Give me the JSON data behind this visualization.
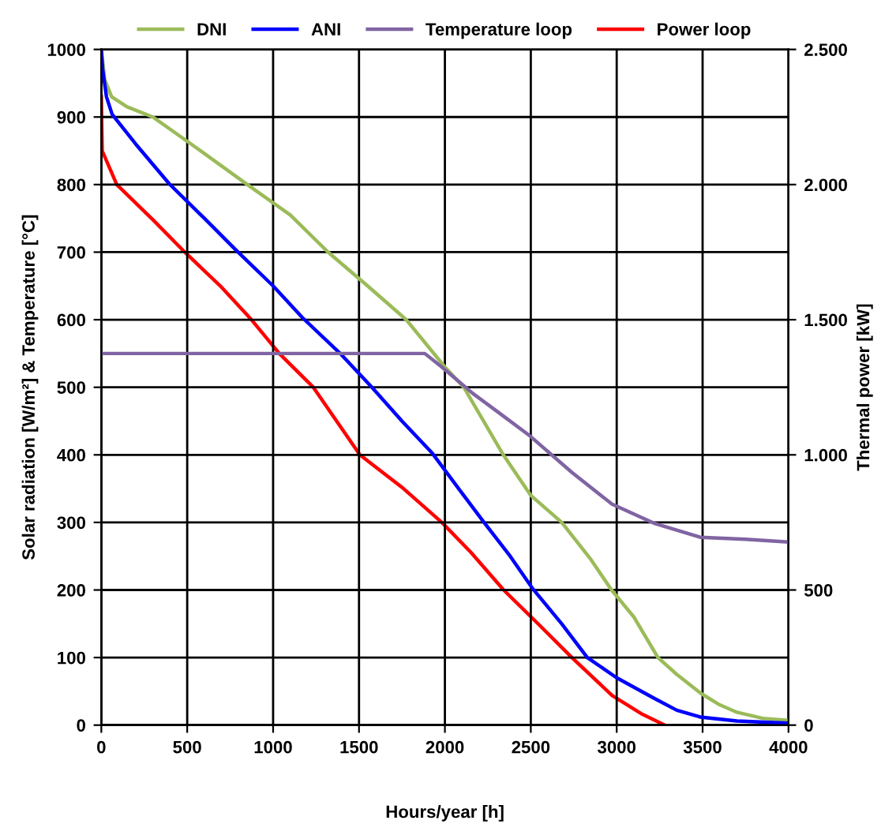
{
  "chart_data": {
    "type": "line",
    "xlabel": "Hours/year [h]",
    "ylabel": "Solar radiation [W/m²] & Temperature [°C]",
    "y2label": "Thermal power [kW]",
    "xlim": [
      0,
      4000
    ],
    "xticks": [
      0,
      500,
      1000,
      1500,
      2000,
      2500,
      3000,
      3500,
      4000
    ],
    "ylim": [
      0,
      1000
    ],
    "yticks": [
      0,
      100,
      200,
      300,
      400,
      500,
      600,
      700,
      800,
      900,
      1000
    ],
    "y2lim": [
      0,
      2500
    ],
    "y2ticks": [
      0,
      500,
      {
        "value": 1000,
        "label": "1.000"
      },
      {
        "value": 1500,
        "label": "1.500"
      },
      {
        "value": 2000,
        "label": "2.000"
      },
      {
        "value": 2500,
        "label": "2.500"
      }
    ],
    "grid": true,
    "legend": "top",
    "marker": "none",
    "line_style": "solid",
    "series": [
      {
        "name": "DNI",
        "color": "#9bbb59",
        "x": [
          0,
          20,
          60,
          150,
          300,
          550,
          850,
          1100,
          1320,
          1550,
          1775,
          2000,
          2110,
          2340,
          2500,
          2680,
          2850,
          2970,
          3100,
          3240,
          3350,
          3490,
          3600,
          3700,
          3850,
          4000
        ],
        "values": [
          1000,
          955,
          930,
          915,
          900,
          855,
          800,
          755,
          700,
          650,
          600,
          530,
          500,
          400,
          340,
          300,
          245,
          200,
          160,
          100,
          75,
          47,
          30,
          19,
          10,
          7
        ]
      },
      {
        "name": "ANI",
        "color": "#0000ff",
        "x": [
          0,
          8,
          30,
          63,
          200,
          396,
          600,
          784,
          1000,
          1171,
          1387,
          1568,
          1750,
          1928,
          2080,
          2225,
          2380,
          2514,
          2680,
          2829,
          3000,
          3216,
          3350,
          3486,
          3700,
          4000
        ],
        "values": [
          1000,
          970,
          930,
          904,
          860,
          801,
          750,
          703,
          650,
          603,
          551,
          502,
          450,
          402,
          350,
          301,
          250,
          201,
          150,
          100,
          70,
          40,
          22,
          12,
          6,
          3
        ]
      },
      {
        "name": "Temperature loop",
        "color": "#8064a2",
        "x": [
          0,
          500,
          1000,
          1500,
          1883,
          1982,
          2162,
          2300,
          2495,
          2739,
          2973,
          3216,
          3486,
          3750,
          4000
        ],
        "values": [
          550,
          550,
          550,
          550,
          550,
          530,
          491,
          465,
          428,
          374,
          327,
          299,
          278,
          275,
          271
        ]
      },
      {
        "name": "Power loop",
        "color": "#ff0000",
        "axis": "y2",
        "x": [
          0,
          5,
          90,
          300,
          486,
          700,
          874,
          1036,
          1234,
          1505,
          1750,
          1982,
          2150,
          2342,
          2550,
          2739,
          2973,
          3150,
          3280
        ],
        "values": [
          2325,
          2125,
          2000,
          1870,
          1750,
          1620,
          1500,
          1375,
          1250,
          1000,
          880,
          750,
          640,
          500,
          370,
          250,
          110,
          40,
          0
        ]
      }
    ]
  }
}
